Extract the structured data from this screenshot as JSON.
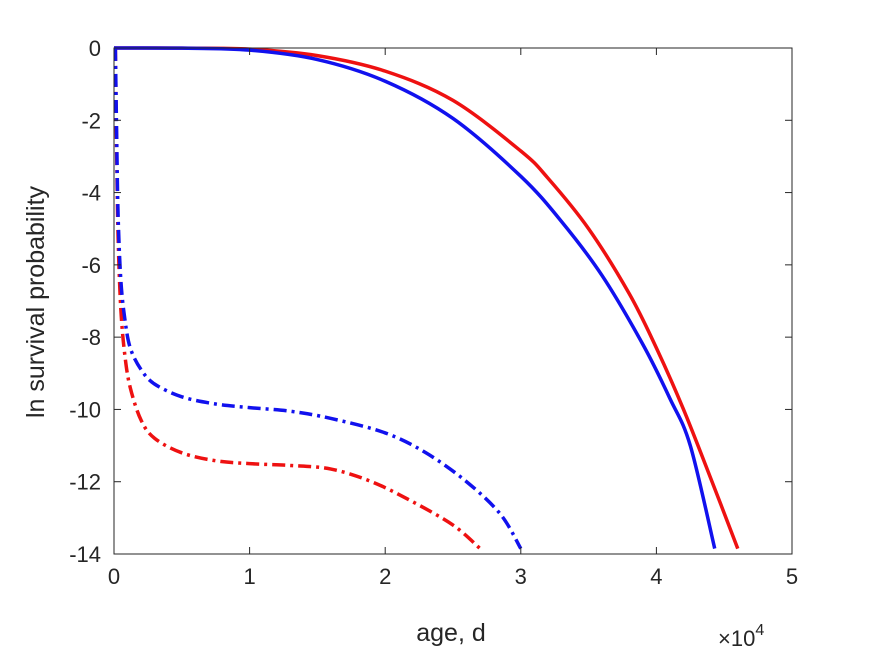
{
  "chart_data": {
    "type": "line",
    "xlabel": "age, d",
    "ylabel": "ln survival probability",
    "x_multiplier_label": {
      "base": "×10",
      "exponent": "4"
    },
    "xlim": [
      0,
      5
    ],
    "ylim": [
      -14,
      0
    ],
    "x_ticks": [
      0,
      1,
      2,
      3,
      4,
      5
    ],
    "x_tick_labels": [
      "0",
      "1",
      "2",
      "3",
      "4",
      "5"
    ],
    "y_ticks": [
      0,
      -2,
      -4,
      -6,
      -8,
      -10,
      -12,
      -14
    ],
    "y_tick_labels": [
      "0",
      "-2",
      "-4",
      "-6",
      "-8",
      "-10",
      "-12",
      "-14"
    ],
    "grid": false,
    "series": [
      {
        "color": "#ee1111",
        "style": "solid",
        "x": [
          0.0,
          0.5,
          1.0,
          1.5,
          2.0,
          2.5,
          3.0,
          3.2,
          3.5,
          3.8,
          4.0,
          4.2,
          4.4,
          4.6
        ],
        "y": [
          0.0,
          -0.005,
          -0.03,
          -0.21,
          -0.64,
          -1.45,
          -2.85,
          -3.6,
          -5.0,
          -6.8,
          -8.3,
          -10.0,
          -11.9,
          -13.85
        ]
      },
      {
        "color": "#1111ee",
        "style": "solid",
        "x": [
          0.0,
          0.5,
          1.0,
          1.5,
          2.0,
          2.5,
          3.0,
          3.3,
          3.6,
          3.9,
          4.1,
          4.25,
          4.43
        ],
        "y": [
          0.0,
          -0.005,
          -0.06,
          -0.32,
          -0.92,
          -1.95,
          -3.55,
          -4.8,
          -6.3,
          -8.2,
          -9.7,
          -11.0,
          -13.85
        ]
      },
      {
        "color": "#ee1111",
        "style": "dashdot",
        "x": [
          0.01,
          0.02,
          0.03,
          0.05,
          0.08,
          0.12,
          0.2,
          0.3,
          0.5,
          0.75,
          1.0,
          1.3,
          1.6,
          1.9,
          2.2,
          2.5,
          2.7
        ],
        "y": [
          0.0,
          -3.0,
          -5.2,
          -7.2,
          -8.5,
          -9.4,
          -10.3,
          -10.8,
          -11.2,
          -11.42,
          -11.5,
          -11.55,
          -11.65,
          -12.0,
          -12.55,
          -13.2,
          -13.85
        ]
      },
      {
        "color": "#1111ee",
        "style": "dashdot",
        "x": [
          0.01,
          0.02,
          0.03,
          0.05,
          0.08,
          0.12,
          0.2,
          0.3,
          0.5,
          0.75,
          1.0,
          1.3,
          1.6,
          2.0,
          2.3,
          2.6,
          2.85,
          3.0
        ],
        "y": [
          0.0,
          -2.5,
          -4.6,
          -6.4,
          -7.5,
          -8.3,
          -8.9,
          -9.3,
          -9.65,
          -9.85,
          -9.95,
          -10.05,
          -10.25,
          -10.65,
          -11.2,
          -12.0,
          -12.9,
          -13.85
        ]
      }
    ]
  }
}
